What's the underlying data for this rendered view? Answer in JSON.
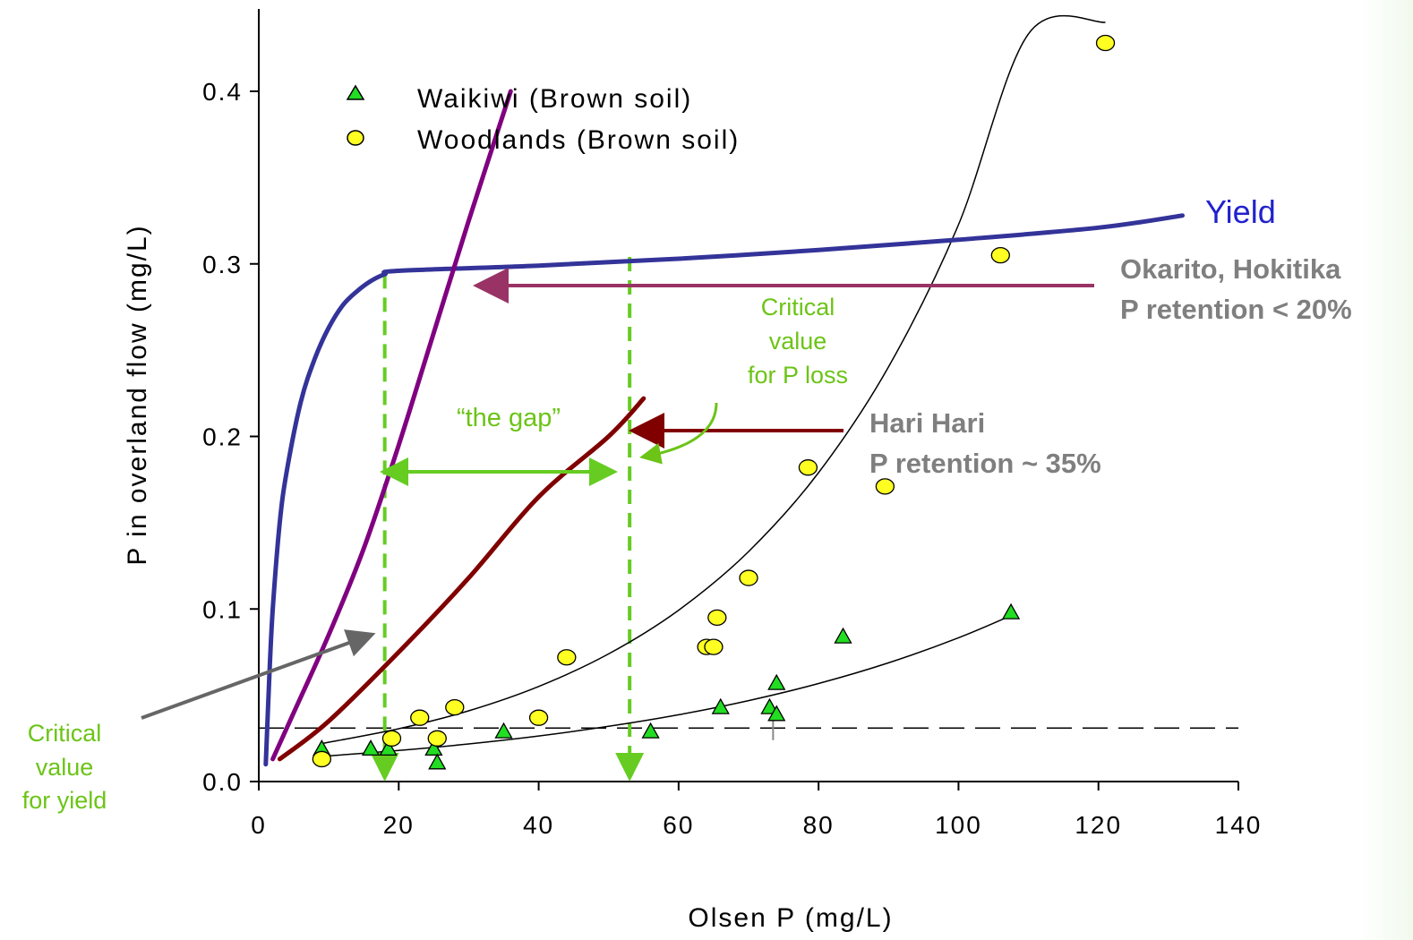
{
  "chart_data": {
    "type": "scatter",
    "xlabel": "Olsen P (mg/L)",
    "ylabel": "P in overland flow (mg/L)",
    "xlim": [
      0,
      140
    ],
    "ylim": [
      0,
      0.45
    ],
    "xticks": [
      0,
      20,
      40,
      60,
      80,
      100,
      120,
      140
    ],
    "yticks": [
      0.0,
      0.1,
      0.2,
      0.3,
      0.4
    ],
    "ytick_labels": [
      "0.0",
      "0.1",
      "0.2",
      "0.3",
      "0.4"
    ],
    "grid": false,
    "legend_position": "top-left",
    "series": [
      {
        "name": "Waikiwi (Brown soil)",
        "marker": "triangle",
        "color": "#22dd22",
        "x": [
          9,
          16,
          18.5,
          25,
          25.5,
          35,
          56,
          66,
          73,
          74,
          74,
          83.5,
          107.5
        ],
        "y": [
          0.019,
          0.019,
          0.019,
          0.019,
          0.011,
          0.029,
          0.029,
          0.043,
          0.043,
          0.039,
          0.057,
          0.084,
          0.098
        ]
      },
      {
        "name": "Woodlands (Brown soil)",
        "marker": "circle",
        "color": "#ffff22",
        "x": [
          9,
          19,
          23,
          25.5,
          28,
          40,
          44,
          64,
          65,
          65.5,
          70,
          78.5,
          89.5,
          106,
          121
        ],
        "y": [
          0.013,
          0.025,
          0.037,
          0.025,
          0.043,
          0.037,
          0.072,
          0.078,
          0.078,
          0.095,
          0.118,
          0.182,
          0.171,
          0.305,
          0.428
        ]
      }
    ],
    "fit_lines": [
      {
        "for": "Waikiwi (Brown soil)",
        "color": "#000000",
        "x": [
          9,
          20,
          30,
          40,
          50,
          60,
          70,
          80,
          90,
          100,
          108
        ],
        "y": [
          0.0146,
          0.018,
          0.0218,
          0.0264,
          0.032,
          0.0387,
          0.0469,
          0.0568,
          0.0688,
          0.0833,
          0.097
        ]
      },
      {
        "for": "Woodlands (Brown soil)",
        "color": "#000000",
        "x": [
          9,
          20,
          30,
          40,
          50,
          60,
          70,
          80,
          90,
          100,
          110,
          121
        ],
        "y": [
          0.022,
          0.0306,
          0.041,
          0.0551,
          0.074,
          0.0993,
          0.1333,
          0.179,
          0.2403,
          0.3227,
          0.4333,
          0.44
        ]
      }
    ],
    "curves": [
      {
        "name": "Yield",
        "color": "#333399",
        "x": [
          1,
          1.5,
          2,
          3,
          4,
          6,
          8,
          10,
          12,
          14,
          16,
          18,
          20,
          40,
          60,
          80,
          100,
          120,
          132
        ],
        "y": [
          0.01,
          0.06,
          0.1,
          0.15,
          0.18,
          0.22,
          0.245,
          0.263,
          0.276,
          0.284,
          0.29,
          0.294,
          0.296,
          0.299,
          0.303,
          0.308,
          0.314,
          0.321,
          0.328
        ]
      },
      {
        "name": "Okarito, Hokitika",
        "color": "#800080",
        "x": [
          2,
          5,
          10,
          15,
          20,
          25,
          30,
          36
        ],
        "y": [
          0.013,
          0.04,
          0.085,
          0.135,
          0.195,
          0.26,
          0.325,
          0.4
        ]
      },
      {
        "name": "Hari Hari",
        "color": "#800000",
        "x": [
          3,
          10,
          20,
          30,
          40,
          50,
          55
        ],
        "y": [
          0.013,
          0.035,
          0.075,
          0.118,
          0.165,
          0.2,
          0.222
        ]
      }
    ],
    "reference_lines": [
      {
        "kind": "horizontal",
        "y": 0.031,
        "color": "#000000",
        "style": "dashed"
      },
      {
        "kind": "vertical",
        "x": 18,
        "from_y": 0.294,
        "to_y": 0.0,
        "color": "#66cc22",
        "style": "dashed"
      },
      {
        "kind": "vertical",
        "x": 53,
        "from_y": 0.304,
        "to_y": 0.0,
        "color": "#66cc22",
        "style": "dashed"
      }
    ],
    "annotations": [
      {
        "text": "Yield",
        "color": "#2222cc"
      },
      {
        "text": "Okarito, Hokitika",
        "color": "#7f7f7f"
      },
      {
        "text": "P retention < 20%",
        "color": "#7f7f7f"
      },
      {
        "text": "Hari Hari",
        "color": "#7f7f7f"
      },
      {
        "text": "P retention ~ 35%",
        "color": "#7f7f7f"
      },
      {
        "text": "Critical",
        "color": "#6CC417"
      },
      {
        "text": "value",
        "color": "#6CC417"
      },
      {
        "text": "for P loss",
        "color": "#6CC417"
      },
      {
        "text": "“the gap”",
        "color": "#6CC417"
      },
      {
        "text": "Critical",
        "color": "#6CC417"
      },
      {
        "text": "value",
        "color": "#6CC417"
      },
      {
        "text": "for yield",
        "color": "#6CC417"
      }
    ]
  }
}
